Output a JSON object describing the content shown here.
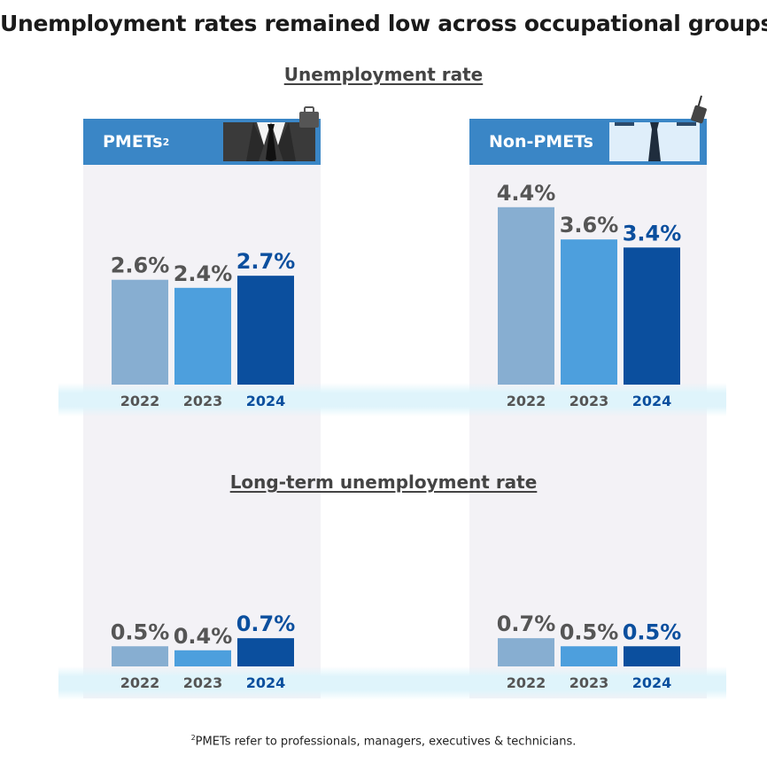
{
  "title": "Unemployment rates remained low across occupational groups",
  "footnote": {
    "marker": "2",
    "text": "PMETs refer to professionals, managers, executives & technicians."
  },
  "colors": {
    "bar_2022": "#87aed1",
    "bar_2023": "#4d9fdd",
    "bar_2024": "#0b4f9e",
    "label_grey": "#555555",
    "label_highlight": "#0b4f9e",
    "header_blue": "#3a86c6"
  },
  "panels": [
    {
      "id": "pmets",
      "label": "PMETs",
      "superscript": "2",
      "icon": "suit-briefcase-icon"
    },
    {
      "id": "nonpmets",
      "label": "Non-PMETs",
      "superscript": "",
      "icon": "shirt-tie-icon"
    }
  ],
  "chart_data": [
    {
      "type": "bar",
      "title": "Unemployment rate",
      "group": "PMETs",
      "categories": [
        "2022",
        "2023",
        "2024"
      ],
      "values": [
        2.6,
        2.4,
        2.7
      ],
      "value_labels": [
        "2.6%",
        "2.4%",
        "2.7%"
      ],
      "ylim": [
        0,
        5.3
      ]
    },
    {
      "type": "bar",
      "title": "Unemployment rate",
      "group": "Non-PMETs",
      "categories": [
        "2022",
        "2023",
        "2024"
      ],
      "values": [
        4.4,
        3.6,
        3.4
      ],
      "value_labels": [
        "4.4%",
        "3.6%",
        "3.4%"
      ],
      "ylim": [
        0,
        5.3
      ]
    },
    {
      "type": "bar",
      "title": "Long-term unemployment rate",
      "group": "PMETs",
      "categories": [
        "2022",
        "2023",
        "2024"
      ],
      "values": [
        0.5,
        0.4,
        0.7
      ],
      "value_labels": [
        "0.5%",
        "0.4%",
        "0.7%"
      ],
      "ylim": [
        0,
        5.3
      ]
    },
    {
      "type": "bar",
      "title": "Long-term unemployment rate",
      "group": "Non-PMETs",
      "categories": [
        "2022",
        "2023",
        "2024"
      ],
      "values": [
        0.7,
        0.5,
        0.5
      ],
      "value_labels": [
        "0.7%",
        "0.5%",
        "0.5%"
      ],
      "ylim": [
        0,
        5.3
      ]
    }
  ]
}
